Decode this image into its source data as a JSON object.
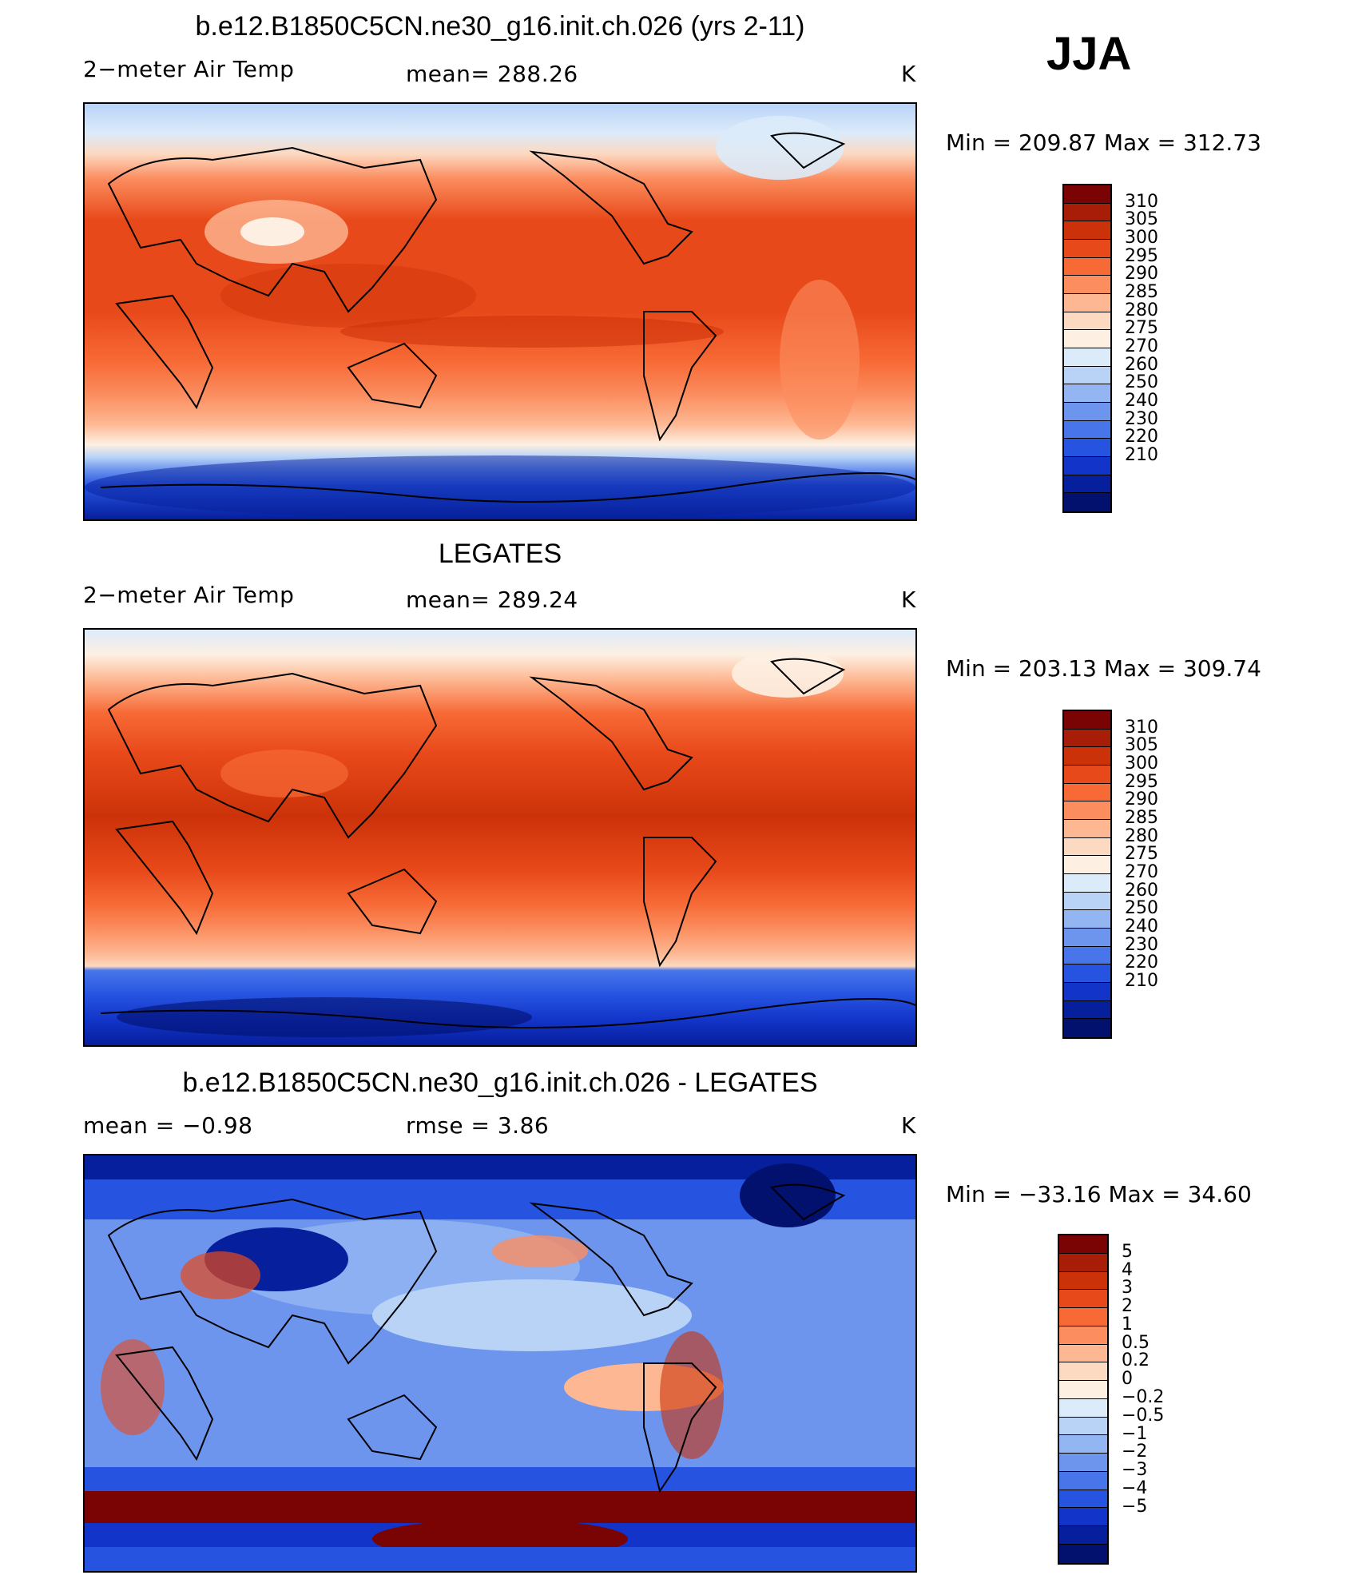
{
  "season": "JJA",
  "panels": [
    {
      "title": "b.e12.B1850C5CN.ne30_g16.init.ch.026 (yrs 2-11)",
      "left_label": "2−meter Air Temp",
      "center_label": "mean=  288.26",
      "units": "K",
      "minmax": "Min  =  209.87  Max  =  312.73",
      "colorbar_labels": [
        "310",
        "305",
        "300",
        "295",
        "290",
        "285",
        "280",
        "275",
        "270",
        "260",
        "250",
        "240",
        "230",
        "220",
        "210"
      ],
      "colorbar_colors": [
        "#7a0403",
        "#a81d08",
        "#cc3209",
        "#e8491a",
        "#f76a36",
        "#fb8d5f",
        "#fdb893",
        "#fcd9c1",
        "#fdf0e2",
        "#dcebfa",
        "#b9d3f7",
        "#93b6f3",
        "#6d95ee",
        "#4876ea",
        "#2653e0",
        "#1234c8",
        "#061f9c",
        "#02106e"
      ]
    },
    {
      "title": "LEGATES",
      "left_label": "2−meter Air Temp",
      "center_label": "mean=  289.24",
      "units": "K",
      "minmax": "Min  =  203.13  Max  =  309.74",
      "colorbar_labels": [
        "310",
        "305",
        "300",
        "295",
        "290",
        "285",
        "280",
        "275",
        "270",
        "260",
        "250",
        "240",
        "230",
        "220",
        "210"
      ],
      "colorbar_colors": [
        "#7a0403",
        "#a81d08",
        "#cc3209",
        "#e8491a",
        "#f76a36",
        "#fb8d5f",
        "#fdb893",
        "#fcd9c1",
        "#fdf0e2",
        "#dcebfa",
        "#b9d3f7",
        "#93b6f3",
        "#6d95ee",
        "#4876ea",
        "#2653e0",
        "#1234c8",
        "#061f9c",
        "#02106e"
      ]
    },
    {
      "title": "b.e12.B1850C5CN.ne30_g16.init.ch.026 - LEGATES",
      "left_label": "mean =    −0.98",
      "center_label": "rmse =     3.86",
      "units": "K",
      "minmax": "Min  =  −33.16  Max  =    34.60",
      "colorbar_labels": [
        "5",
        "4",
        "3",
        "2",
        "1",
        "0.5",
        "0.2",
        "0",
        "−0.2",
        "−0.5",
        "−1",
        "−2",
        "−3",
        "−4",
        "−5"
      ],
      "colorbar_colors": [
        "#7a0403",
        "#a81d08",
        "#cc3209",
        "#e8491a",
        "#f76a36",
        "#fb8d5f",
        "#fdb893",
        "#fcd9c1",
        "#fdf0e2",
        "#dcebfa",
        "#b9d3f7",
        "#93b6f3",
        "#6d95ee",
        "#4876ea",
        "#2653e0",
        "#1234c8",
        "#061f9c",
        "#02106e"
      ]
    }
  ]
}
